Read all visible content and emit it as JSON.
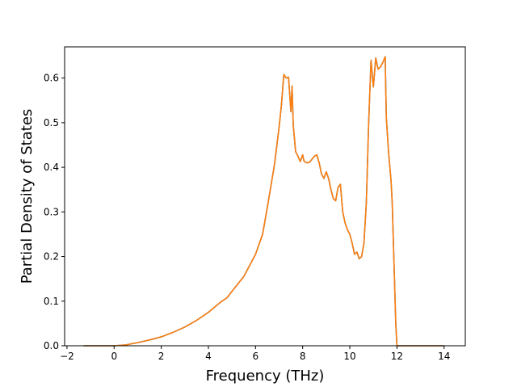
{
  "chart_data": {
    "type": "line",
    "title": "",
    "xlabel": "Frequency (THz)",
    "ylabel": "Partial Density of States",
    "xlim": [
      -2.1,
      14.9
    ],
    "ylim": [
      0.0,
      0.67
    ],
    "xticks": [
      -2,
      0,
      2,
      4,
      6,
      8,
      10,
      12,
      14
    ],
    "xtick_labels": [
      "−2",
      "0",
      "2",
      "4",
      "6",
      "8",
      "10",
      "12",
      "14"
    ],
    "yticks": [
      0.0,
      0.1,
      0.2,
      0.3,
      0.4,
      0.5,
      0.6
    ],
    "ytick_labels": [
      "0.0",
      "0.1",
      "0.2",
      "0.3",
      "0.4",
      "0.5",
      "0.6"
    ],
    "grid": false,
    "legend": "none",
    "series": [
      {
        "color": "#1f77b4",
        "x": [
          -1.3,
          -0.5,
          0,
          0.5,
          1,
          1.5,
          2,
          2.5,
          3,
          3.5,
          4,
          4.5,
          4.8,
          5,
          5.5,
          6,
          6.3,
          6.5,
          6.8,
          7,
          7.1,
          7.2,
          7.3,
          7.4,
          7.5,
          7.55,
          7.6,
          7.65,
          7.7,
          7.8,
          7.9,
          8,
          8.05,
          8.1,
          8.2,
          8.3,
          8.5,
          8.6,
          8.7,
          8.8,
          8.9,
          9,
          9.1,
          9.2,
          9.25,
          9.3,
          9.4,
          9.5,
          9.6,
          9.7,
          9.8,
          9.9,
          10,
          10.05,
          10.1,
          10.2,
          10.3,
          10.4,
          10.5,
          10.6,
          10.7,
          10.8,
          10.9,
          11,
          11.1,
          11.2,
          11.3,
          11.4,
          11.5,
          11.55,
          11.6,
          11.65,
          11.7,
          11.75,
          11.8,
          11.85,
          11.9,
          11.95,
          12,
          12.1,
          12.2,
          12.3,
          12.4,
          12.5,
          12.6,
          12.7,
          12.8,
          12.85,
          12.9,
          14
        ],
        "y": [
          0,
          0,
          0,
          0.002,
          0.007,
          0.013,
          0.02,
          0.03,
          0.042,
          0.057,
          0.075,
          0.097,
          0.108,
          0.122,
          0.155,
          0.205,
          0.25,
          0.31,
          0.405,
          0.49,
          0.54,
          0.608,
          0.6,
          0.602,
          0.525,
          0.582,
          0.495,
          0.465,
          0.435,
          0.425,
          0.413,
          0.428,
          0.415,
          0.412,
          0.41,
          0.412,
          0.425,
          0.428,
          0.41,
          0.385,
          0.375,
          0.39,
          0.375,
          0.35,
          0.34,
          0.33,
          0.325,
          0.355,
          0.362,
          0.3,
          0.275,
          0.26,
          0.25,
          0.24,
          0.23,
          0.205,
          0.21,
          0.195,
          0.2,
          0.23,
          0.32,
          0.5,
          0.64,
          0.58,
          0.645,
          0.62,
          0.625,
          0.635,
          0.648,
          0.51,
          0.47,
          0.43,
          0.4,
          0.37,
          0.32,
          0.23,
          0.14,
          0.05,
          0,
          0,
          0,
          0,
          0,
          0,
          0,
          0,
          0,
          0,
          0,
          0
        ]
      },
      {
        "color": "#ff7f0e",
        "x": [
          -1.3,
          -0.5,
          0,
          0.5,
          1,
          1.5,
          2,
          2.5,
          3,
          3.5,
          4,
          4.5,
          4.8,
          5,
          5.5,
          6,
          6.3,
          6.5,
          6.8,
          7,
          7.1,
          7.2,
          7.3,
          7.4,
          7.5,
          7.55,
          7.6,
          7.65,
          7.7,
          7.8,
          7.9,
          8,
          8.05,
          8.1,
          8.2,
          8.3,
          8.5,
          8.6,
          8.7,
          8.8,
          8.9,
          9,
          9.1,
          9.2,
          9.25,
          9.3,
          9.4,
          9.5,
          9.6,
          9.7,
          9.8,
          9.9,
          10,
          10.05,
          10.1,
          10.2,
          10.3,
          10.4,
          10.5,
          10.6,
          10.7,
          10.8,
          10.9,
          11,
          11.1,
          11.2,
          11.3,
          11.4,
          11.5,
          11.55,
          11.6,
          11.65,
          11.7,
          11.75,
          11.8,
          11.85,
          11.9,
          11.95,
          12,
          12.1,
          12.2,
          12.3,
          12.4,
          12.5,
          12.6,
          12.7,
          12.8,
          12.85,
          12.9,
          14
        ],
        "y": [
          0,
          0,
          0,
          0.002,
          0.007,
          0.013,
          0.02,
          0.03,
          0.042,
          0.057,
          0.075,
          0.097,
          0.108,
          0.122,
          0.155,
          0.205,
          0.25,
          0.31,
          0.405,
          0.49,
          0.54,
          0.608,
          0.6,
          0.602,
          0.525,
          0.582,
          0.495,
          0.465,
          0.435,
          0.425,
          0.413,
          0.428,
          0.415,
          0.412,
          0.41,
          0.412,
          0.425,
          0.428,
          0.41,
          0.385,
          0.375,
          0.39,
          0.375,
          0.35,
          0.34,
          0.33,
          0.325,
          0.355,
          0.362,
          0.3,
          0.275,
          0.26,
          0.25,
          0.24,
          0.23,
          0.205,
          0.21,
          0.195,
          0.2,
          0.23,
          0.32,
          0.5,
          0.64,
          0.58,
          0.645,
          0.62,
          0.625,
          0.635,
          0.648,
          0.51,
          0.47,
          0.43,
          0.4,
          0.37,
          0.32,
          0.23,
          0.14,
          0.05,
          0,
          0,
          0,
          0,
          0,
          0,
          0,
          0,
          0,
          0,
          0,
          0
        ]
      }
    ]
  }
}
